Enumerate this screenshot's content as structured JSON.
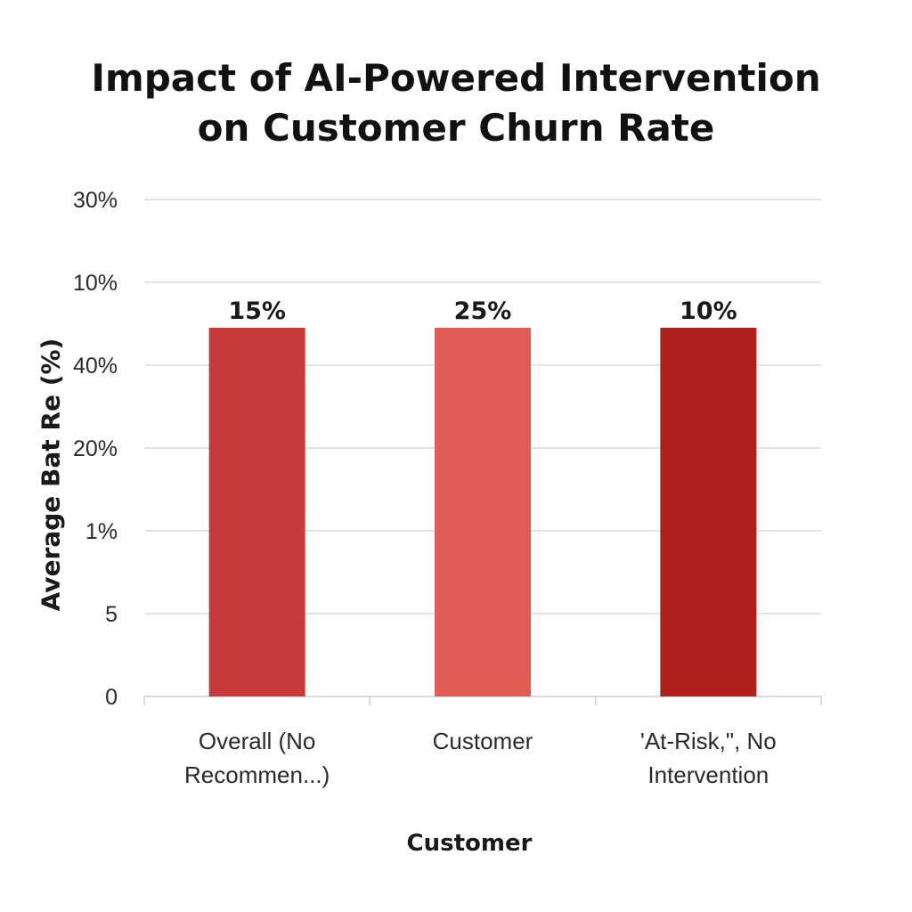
{
  "chart_data": {
    "type": "bar",
    "title_lines": [
      "Impact of AI-Powered Intervention",
      "on Customer Churn Rate"
    ],
    "ylabel": "Average Bat Re  (%)",
    "xlabel": "Customer",
    "y_tick_labels": [
      "0",
      "5",
      "1%",
      "20%",
      "40%",
      "10%",
      "30%"
    ],
    "categories": [
      [
        "Overall (No",
        "Recommen...)"
      ],
      [
        "Customer"
      ],
      [
        "'At-Risk,\", No",
        "Intervention"
      ]
    ],
    "values": [
      15,
      25,
      10
    ],
    "data_labels": [
      "15%",
      "25%",
      "10%"
    ],
    "bar_colors": [
      "#c73c3a",
      "#df5d55",
      "#b0211d"
    ],
    "grid": true,
    "legend": "none"
  }
}
